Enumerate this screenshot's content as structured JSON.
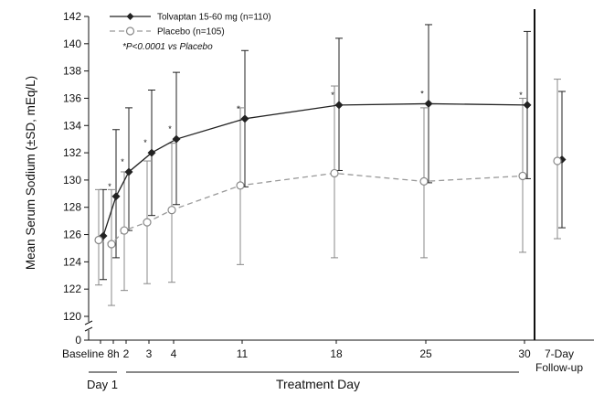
{
  "chart_data": {
    "type": "line",
    "ylabel": "Mean Serum Sodium (±SD, mEq/L)",
    "ylim": [
      120,
      142
    ],
    "y_ticks": [
      0,
      120,
      122,
      124,
      126,
      128,
      130,
      132,
      134,
      136,
      138,
      140,
      142
    ],
    "axis_break": true,
    "x_categories": [
      "Baseline",
      "8h",
      "2",
      "3",
      "4",
      "11",
      "18",
      "25",
      "30"
    ],
    "followup_label": [
      "7-Day",
      "Follow-up"
    ],
    "groups": [
      {
        "label": "Day 1"
      },
      {
        "label": "Treatment Day"
      }
    ],
    "note": "*P<0.0001 vs Placebo",
    "legend_position": "top-left",
    "series": [
      {
        "name": "Tolvaptan 15-60 mg (n=110)",
        "color": "#222222",
        "marker": "filled-diamond",
        "line_style": "solid",
        "values": [
          125.9,
          128.8,
          130.6,
          132.0,
          133.0,
          134.5,
          135.5,
          135.6,
          135.5
        ],
        "sd_low": [
          122.7,
          124.3,
          126.3,
          127.4,
          128.2,
          129.5,
          130.7,
          129.8,
          130.1
        ],
        "sd_high": [
          129.3,
          133.7,
          135.3,
          136.6,
          137.9,
          139.5,
          140.4,
          141.4,
          140.9
        ],
        "significance": [
          "",
          "*",
          "*",
          "*",
          "*",
          "*",
          "*",
          "*",
          "*"
        ],
        "followup": {
          "value": 131.5,
          "sd_low": 126.5,
          "sd_high": 136.5
        }
      },
      {
        "name": "Placebo (n=105)",
        "color": "#999999",
        "marker": "open-circle",
        "line_style": "dashed",
        "values": [
          125.6,
          125.3,
          126.3,
          126.9,
          127.8,
          129.6,
          130.5,
          129.9,
          130.3
        ],
        "sd_low": [
          122.3,
          120.8,
          121.9,
          122.4,
          122.5,
          123.8,
          124.3,
          124.3,
          124.7
        ],
        "sd_high": [
          129.3,
          129.3,
          130.6,
          131.4,
          132.7,
          135.3,
          136.9,
          135.3,
          136.0
        ],
        "followup": {
          "value": 131.4,
          "sd_low": 125.7,
          "sd_high": 137.4
        }
      }
    ]
  }
}
